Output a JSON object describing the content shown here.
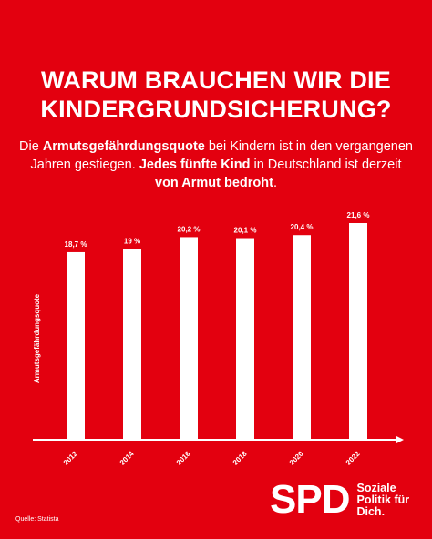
{
  "header": {
    "title_line1": "WARUM BRAUCHEN WIR DIE",
    "title_line2": "KINDERGRUNDSICHERUNG?"
  },
  "subtitle": {
    "p1": "Die ",
    "b1": "Armutsgefährdungsquote",
    "p2": " bei Kindern ist in den vergangenen Jahren gestiegen. ",
    "b2": "Jedes fünfte Kind",
    "p3": " in Deutschland ist derzeit ",
    "b3": "von Armut bedroht",
    "p4": "."
  },
  "chart_data": {
    "type": "bar",
    "ylabel": "Armutsgefährdungsquote",
    "xlabel": "",
    "categories": [
      "2012",
      "2014",
      "2016",
      "2018",
      "2020",
      "2022"
    ],
    "values": [
      18.7,
      19.0,
      20.2,
      20.1,
      20.4,
      21.6
    ],
    "value_labels": [
      "18,7 %",
      "19 %",
      "20,2 %",
      "20,1 %",
      "20,4 %",
      "21,6 %"
    ],
    "grid": false,
    "colors": {
      "bar": "#ffffff",
      "background": "#e3000f"
    }
  },
  "footer": {
    "source": "Quelle: Statista",
    "logo_text": "SPD",
    "slogan_line1": "Soziale",
    "slogan_line2": "Politik für",
    "slogan_line3": "Dich."
  }
}
